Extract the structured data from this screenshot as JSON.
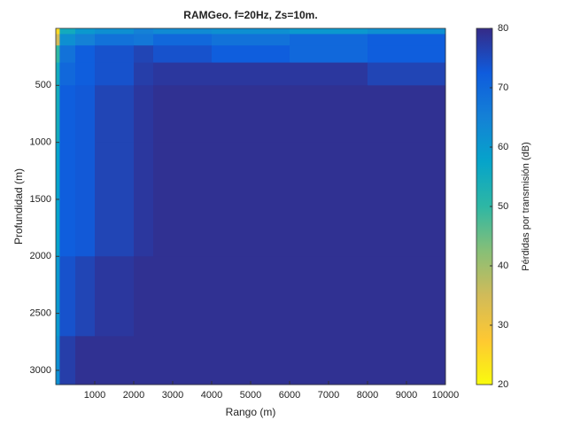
{
  "chart_data": {
    "type": "heatmap",
    "title": "RAMGeo. f=20Hz, Zs=10m.",
    "x_label": "Rango (m)",
    "y_label": "Profundidad (m)",
    "colorbar_label": "Pérdidas por transmisión (dB)",
    "xlim": [
      0,
      10000
    ],
    "ylim": [
      0,
      3125
    ],
    "y_reversed": true,
    "xticks": [
      1000,
      2000,
      3000,
      4000,
      5000,
      6000,
      7000,
      8000,
      9000,
      10000
    ],
    "yticks": [
      500,
      1000,
      1500,
      2000,
      2500,
      3000
    ],
    "zlim": [
      20,
      80
    ],
    "zticks": [
      20,
      30,
      40,
      50,
      60,
      70,
      80
    ],
    "colormap": [
      "#f9fb0e",
      "#fec832",
      "#d1bb59",
      "#87bf77",
      "#2eb7a4",
      "#06a4ca",
      "#1481d6",
      "#0f5cdd",
      "#352a87"
    ],
    "x_edges": [
      0,
      100,
      500,
      1000,
      2000,
      2500,
      4000,
      6000,
      8000,
      10000
    ],
    "y_edges": [
      0,
      50,
      150,
      300,
      500,
      1000,
      2000,
      2700,
      3125
    ],
    "z": [
      [
        25,
        55,
        60,
        62,
        65,
        63,
        62,
        60,
        62
      ],
      [
        35,
        62,
        65,
        68,
        67,
        70,
        68,
        70,
        72
      ],
      [
        50,
        68,
        72,
        74,
        76,
        74,
        72,
        70,
        72
      ],
      [
        55,
        70,
        72,
        74,
        77,
        78,
        78,
        78,
        76
      ],
      [
        55,
        72,
        73,
        76,
        78,
        79,
        79,
        79,
        79
      ],
      [
        58,
        72,
        73,
        76,
        78,
        79,
        79,
        79,
        79
      ],
      [
        60,
        74,
        76,
        78,
        79,
        79,
        79,
        79,
        79
      ],
      [
        62,
        77,
        79,
        79,
        79,
        79,
        79,
        79,
        79
      ]
    ]
  }
}
